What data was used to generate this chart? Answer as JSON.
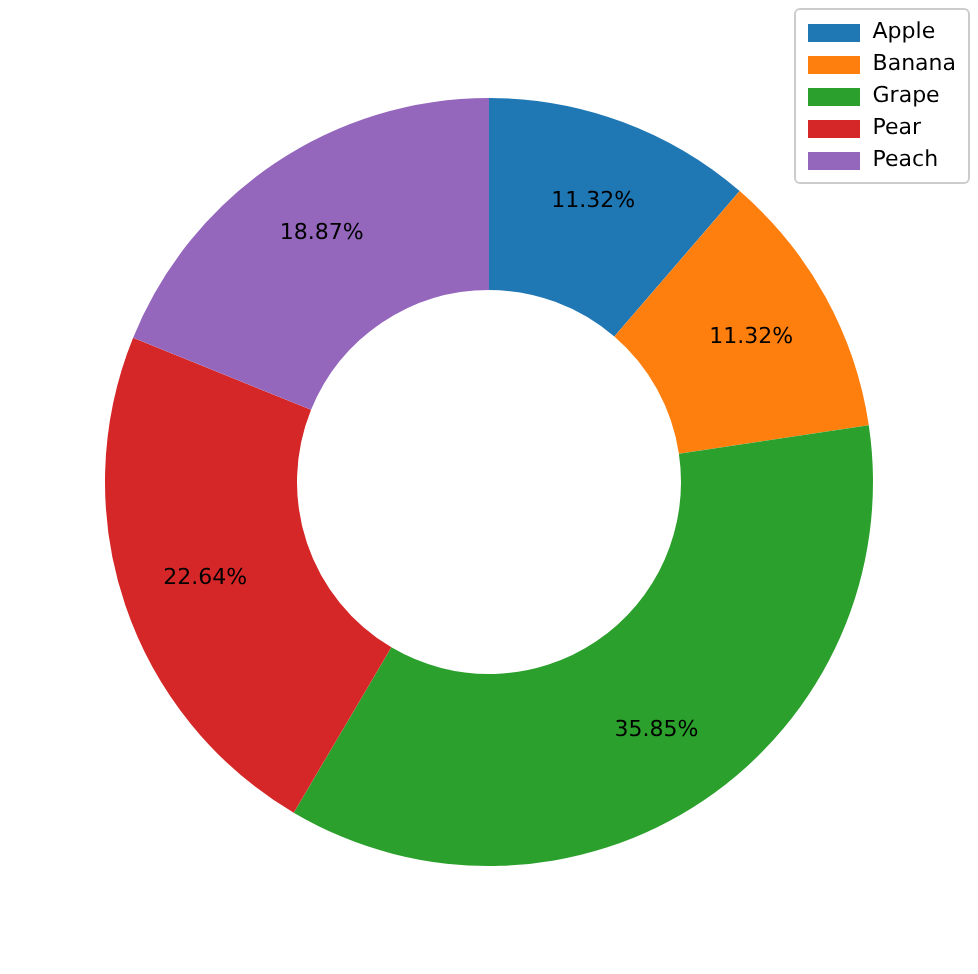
{
  "chart_data": {
    "type": "donut",
    "categories": [
      "Apple",
      "Banana",
      "Grape",
      "Pear",
      "Peach"
    ],
    "values": [
      11.32,
      11.32,
      35.85,
      22.64,
      18.87
    ],
    "colors": [
      "#1f77b4",
      "#ff7f0e",
      "#2ca02c",
      "#d62728",
      "#9467bd"
    ],
    "value_labels": [
      "11.32%",
      "11.32%",
      "35.85%",
      "22.64%",
      "18.87%"
    ],
    "legend": "top right"
  }
}
